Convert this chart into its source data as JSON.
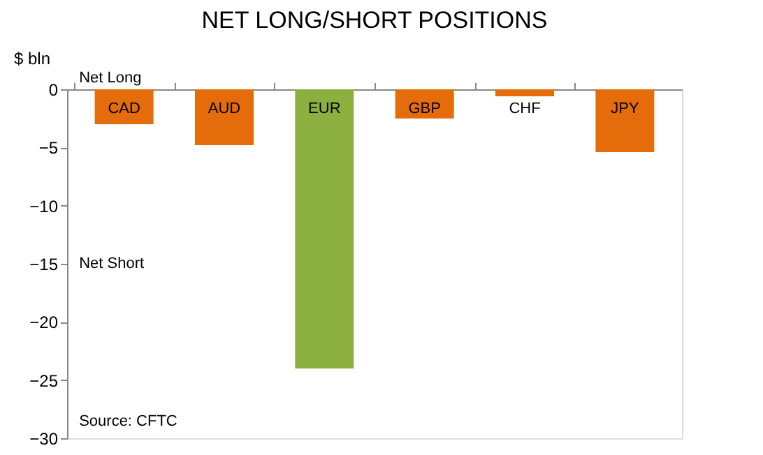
{
  "chart_data": {
    "type": "bar",
    "title": "NET LONG/SHORT POSITIONS",
    "ylabel": "$ bln",
    "categories": [
      "CAD",
      "AUD",
      "EUR",
      "GBP",
      "CHF",
      "JPY"
    ],
    "values": [
      -3.0,
      -4.8,
      -24.0,
      -2.5,
      -0.6,
      -5.4
    ],
    "colors": [
      "#e46c0a",
      "#e46c0a",
      "#8cb040",
      "#e46c0a",
      "#e46c0a",
      "#e46c0a"
    ],
    "ylim": [
      -30,
      0
    ],
    "yticks": [
      0,
      -5,
      -10,
      -15,
      -20,
      -25,
      -30
    ],
    "grid": false,
    "annotations": [
      "Net Long",
      "Net Short",
      "Source: CFTC"
    ]
  }
}
